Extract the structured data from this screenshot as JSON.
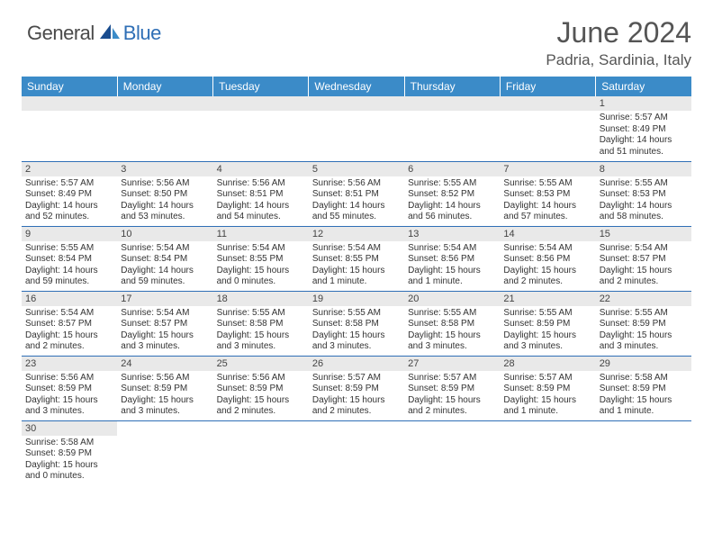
{
  "brand": {
    "part1": "General",
    "part2": "Blue"
  },
  "title": "June 2024",
  "location": "Padria, Sardinia, Italy",
  "header_bg": "#3b8bc8",
  "row_border": "#2f6fb6",
  "daynum_bg": "#e9e9e9",
  "days": [
    "Sunday",
    "Monday",
    "Tuesday",
    "Wednesday",
    "Thursday",
    "Friday",
    "Saturday"
  ],
  "weeks": [
    [
      null,
      null,
      null,
      null,
      null,
      null,
      {
        "n": "1",
        "sr": "5:57 AM",
        "ss": "8:49 PM",
        "dl": "14 hours and 51 minutes."
      }
    ],
    [
      {
        "n": "2",
        "sr": "5:57 AM",
        "ss": "8:49 PM",
        "dl": "14 hours and 52 minutes."
      },
      {
        "n": "3",
        "sr": "5:56 AM",
        "ss": "8:50 PM",
        "dl": "14 hours and 53 minutes."
      },
      {
        "n": "4",
        "sr": "5:56 AM",
        "ss": "8:51 PM",
        "dl": "14 hours and 54 minutes."
      },
      {
        "n": "5",
        "sr": "5:56 AM",
        "ss": "8:51 PM",
        "dl": "14 hours and 55 minutes."
      },
      {
        "n": "6",
        "sr": "5:55 AM",
        "ss": "8:52 PM",
        "dl": "14 hours and 56 minutes."
      },
      {
        "n": "7",
        "sr": "5:55 AM",
        "ss": "8:53 PM",
        "dl": "14 hours and 57 minutes."
      },
      {
        "n": "8",
        "sr": "5:55 AM",
        "ss": "8:53 PM",
        "dl": "14 hours and 58 minutes."
      }
    ],
    [
      {
        "n": "9",
        "sr": "5:55 AM",
        "ss": "8:54 PM",
        "dl": "14 hours and 59 minutes."
      },
      {
        "n": "10",
        "sr": "5:54 AM",
        "ss": "8:54 PM",
        "dl": "14 hours and 59 minutes."
      },
      {
        "n": "11",
        "sr": "5:54 AM",
        "ss": "8:55 PM",
        "dl": "15 hours and 0 minutes."
      },
      {
        "n": "12",
        "sr": "5:54 AM",
        "ss": "8:55 PM",
        "dl": "15 hours and 1 minute."
      },
      {
        "n": "13",
        "sr": "5:54 AM",
        "ss": "8:56 PM",
        "dl": "15 hours and 1 minute."
      },
      {
        "n": "14",
        "sr": "5:54 AM",
        "ss": "8:56 PM",
        "dl": "15 hours and 2 minutes."
      },
      {
        "n": "15",
        "sr": "5:54 AM",
        "ss": "8:57 PM",
        "dl": "15 hours and 2 minutes."
      }
    ],
    [
      {
        "n": "16",
        "sr": "5:54 AM",
        "ss": "8:57 PM",
        "dl": "15 hours and 2 minutes."
      },
      {
        "n": "17",
        "sr": "5:54 AM",
        "ss": "8:57 PM",
        "dl": "15 hours and 3 minutes."
      },
      {
        "n": "18",
        "sr": "5:55 AM",
        "ss": "8:58 PM",
        "dl": "15 hours and 3 minutes."
      },
      {
        "n": "19",
        "sr": "5:55 AM",
        "ss": "8:58 PM",
        "dl": "15 hours and 3 minutes."
      },
      {
        "n": "20",
        "sr": "5:55 AM",
        "ss": "8:58 PM",
        "dl": "15 hours and 3 minutes."
      },
      {
        "n": "21",
        "sr": "5:55 AM",
        "ss": "8:59 PM",
        "dl": "15 hours and 3 minutes."
      },
      {
        "n": "22",
        "sr": "5:55 AM",
        "ss": "8:59 PM",
        "dl": "15 hours and 3 minutes."
      }
    ],
    [
      {
        "n": "23",
        "sr": "5:56 AM",
        "ss": "8:59 PM",
        "dl": "15 hours and 3 minutes."
      },
      {
        "n": "24",
        "sr": "5:56 AM",
        "ss": "8:59 PM",
        "dl": "15 hours and 3 minutes."
      },
      {
        "n": "25",
        "sr": "5:56 AM",
        "ss": "8:59 PM",
        "dl": "15 hours and 2 minutes."
      },
      {
        "n": "26",
        "sr": "5:57 AM",
        "ss": "8:59 PM",
        "dl": "15 hours and 2 minutes."
      },
      {
        "n": "27",
        "sr": "5:57 AM",
        "ss": "8:59 PM",
        "dl": "15 hours and 2 minutes."
      },
      {
        "n": "28",
        "sr": "5:57 AM",
        "ss": "8:59 PM",
        "dl": "15 hours and 1 minute."
      },
      {
        "n": "29",
        "sr": "5:58 AM",
        "ss": "8:59 PM",
        "dl": "15 hours and 1 minute."
      }
    ],
    [
      {
        "n": "30",
        "sr": "5:58 AM",
        "ss": "8:59 PM",
        "dl": "15 hours and 0 minutes."
      },
      null,
      null,
      null,
      null,
      null,
      null
    ]
  ],
  "labels": {
    "sunrise": "Sunrise:",
    "sunset": "Sunset:",
    "daylight": "Daylight:"
  }
}
